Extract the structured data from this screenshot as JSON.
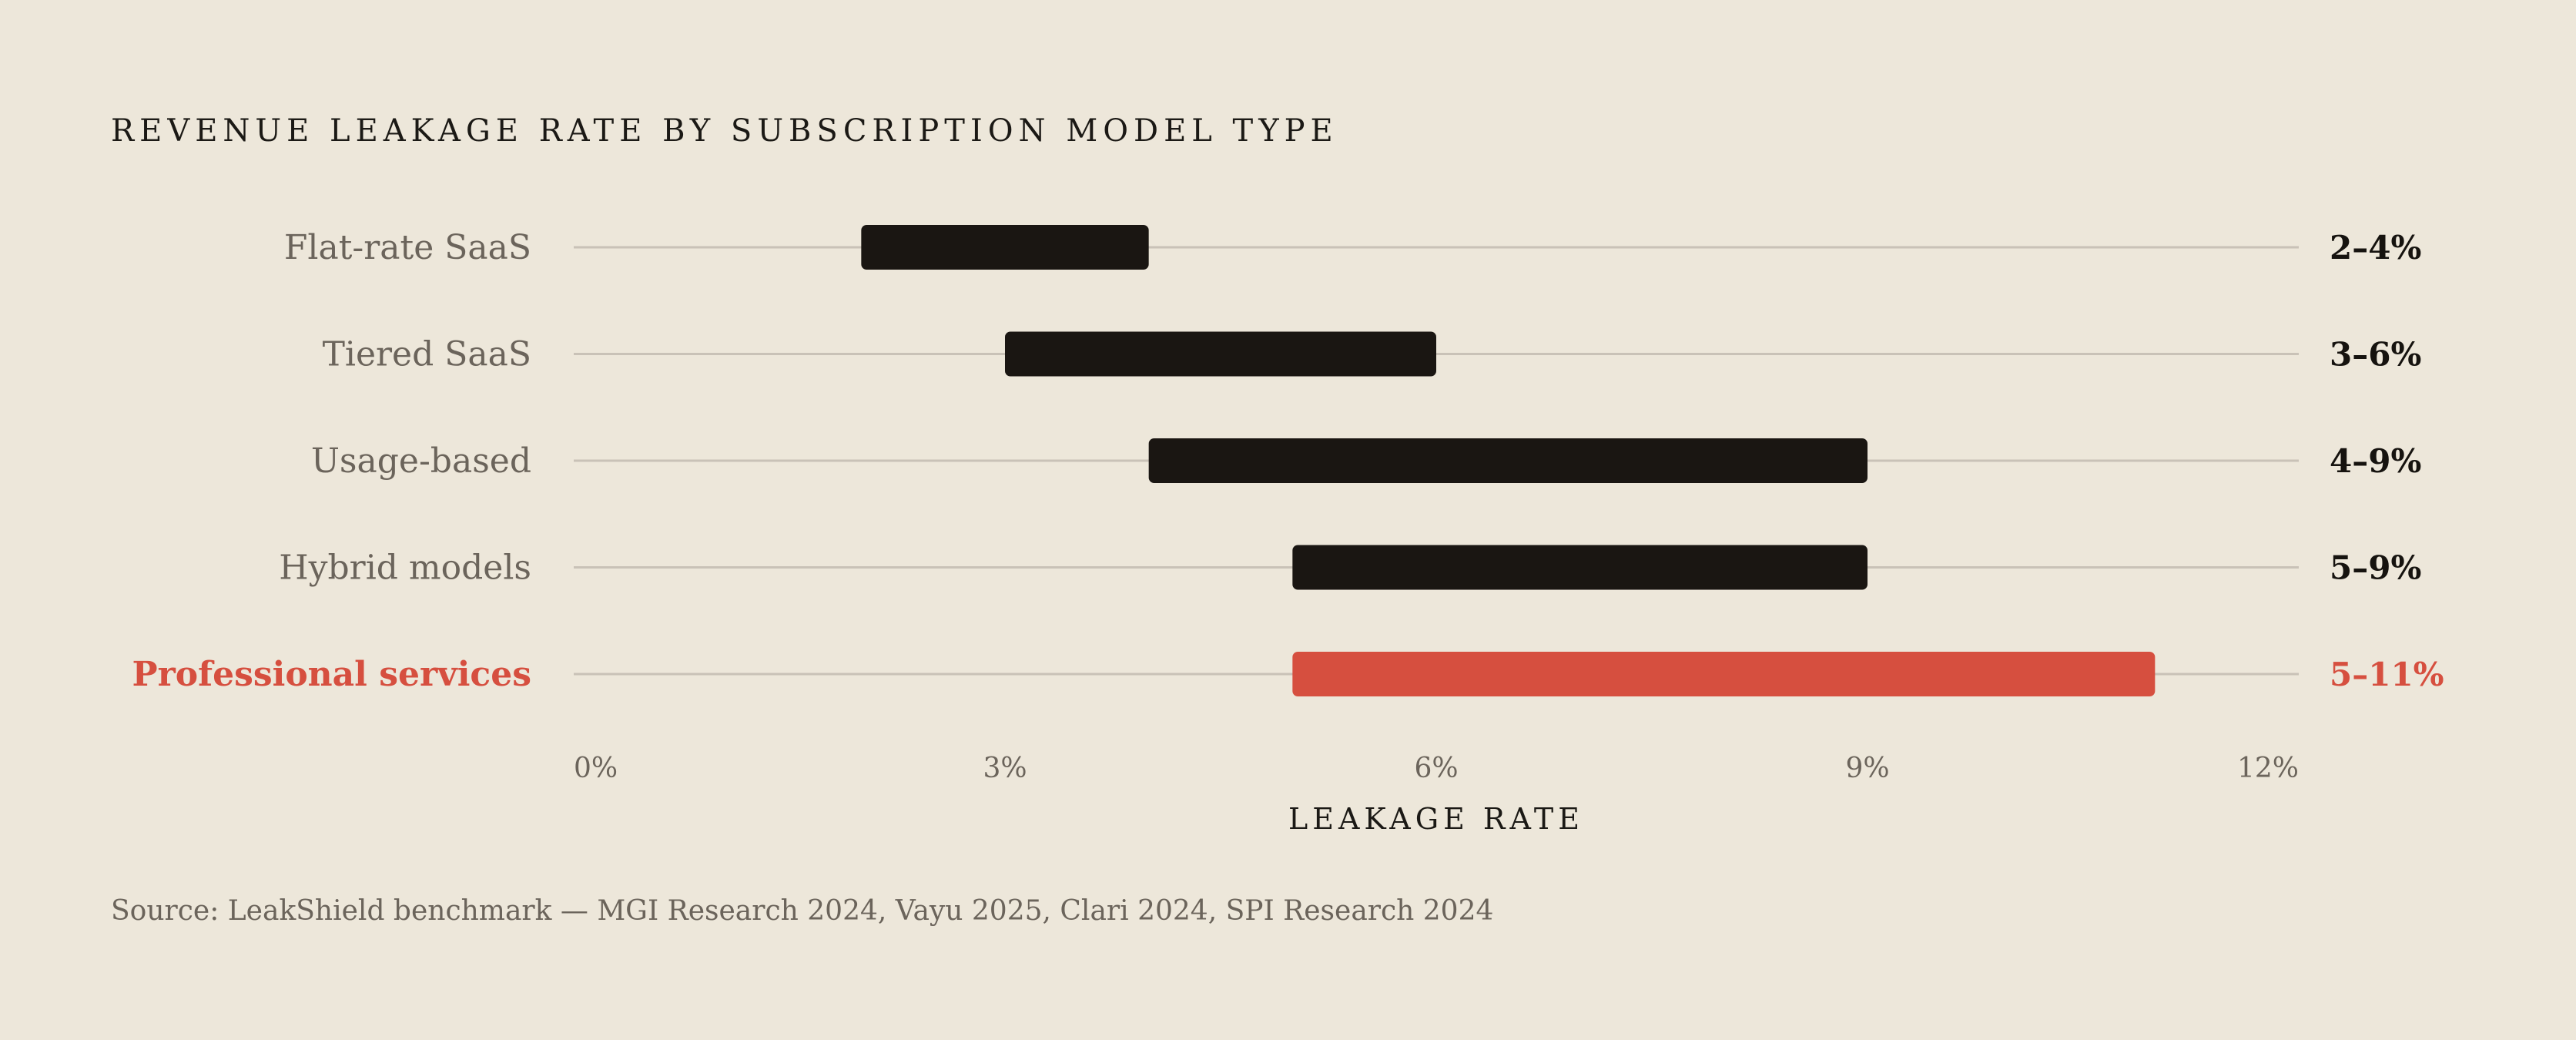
{
  "chart_data": {
    "type": "bar",
    "subtype": "floating-range",
    "orientation": "horizontal",
    "title": "REVENUE LEAKAGE RATE BY SUBSCRIPTION MODEL TYPE",
    "xlabel": "LEAKAGE RATE",
    "xlim": [
      0,
      12
    ],
    "x_ticks": [
      0,
      3,
      6,
      9,
      12
    ],
    "x_tick_labels": [
      "0%",
      "3%",
      "6%",
      "9%",
      "12%"
    ],
    "grid": false,
    "categories": [
      "Flat-rate SaaS",
      "Tiered SaaS",
      "Usage-based",
      "Hybrid models",
      "Professional services"
    ],
    "ranges": [
      {
        "category": "Flat-rate SaaS",
        "low": 2,
        "high": 4,
        "label": "2–4%",
        "highlight": false
      },
      {
        "category": "Tiered SaaS",
        "low": 3,
        "high": 6,
        "label": "3–6%",
        "highlight": false
      },
      {
        "category": "Usage-based",
        "low": 4,
        "high": 9,
        "label": "4–9%",
        "highlight": false
      },
      {
        "category": "Hybrid models",
        "low": 5,
        "high": 9,
        "label": "5–9%",
        "highlight": false
      },
      {
        "category": "Professional services",
        "low": 5,
        "high": 11,
        "label": "5–11%",
        "highlight": true
      }
    ],
    "colors": {
      "bar": "#1A1612",
      "highlight": "#D64F3F",
      "track": "#C9C2B7",
      "background": "#EDE7DA"
    }
  },
  "source": "Source: LeakShield benchmark — MGI Research 2024, Vayu 2025, Clari 2024, SPI Research 2024"
}
